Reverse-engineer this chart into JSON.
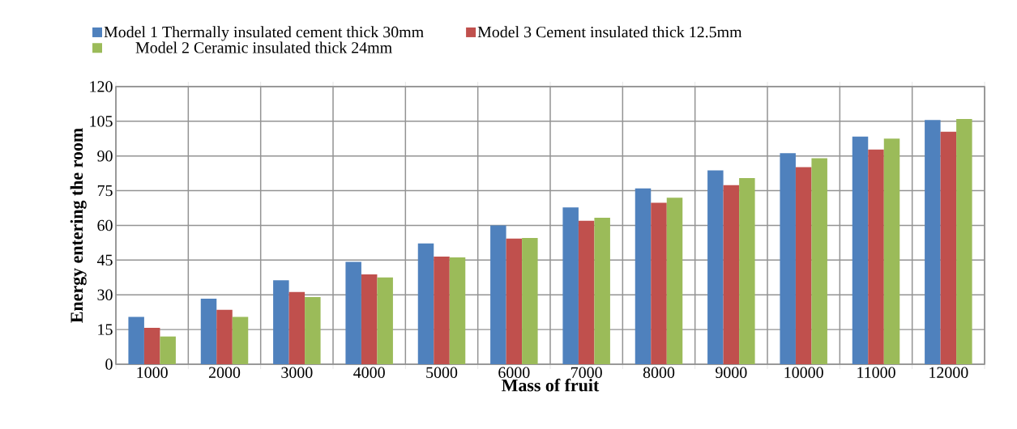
{
  "chart_data": {
    "type": "bar",
    "xlabel": "Mass of fruit",
    "ylabel": "Energy entering the room",
    "categories": [
      "1000",
      "2000",
      "3000",
      "4000",
      "5000",
      "6000",
      "7000",
      "8000",
      "9000",
      "10000",
      "11000",
      "12000"
    ],
    "series": [
      {
        "name": "Model 1 Thermally insulated cement thick 30mm",
        "color": "#4f81bd",
        "values": [
          20.5,
          28.3,
          36.3,
          44.3,
          52.2,
          60,
          67.8,
          76,
          83.8,
          91.2,
          98.4,
          105.6
        ]
      },
      {
        "name": "Model  3 Cement insulated thick 12.5mm",
        "color": "#c0504d",
        "values": [
          15.7,
          23.5,
          31.2,
          38.8,
          46.5,
          54.3,
          62,
          69.8,
          77.4,
          85.2,
          92.8,
          100.5
        ]
      },
      {
        "name": "Model 2 Ceramic insulated thick 24mm",
        "color": "#9bbb59",
        "values": [
          12,
          20.5,
          29,
          37.5,
          46.2,
          54.6,
          63.3,
          72,
          80.5,
          89,
          97.5,
          106
        ]
      }
    ],
    "ylim": [
      0,
      120
    ],
    "yticks": [
      0,
      15,
      30,
      45,
      60,
      75,
      90,
      105,
      120
    ],
    "grid": true,
    "legend": "top"
  }
}
